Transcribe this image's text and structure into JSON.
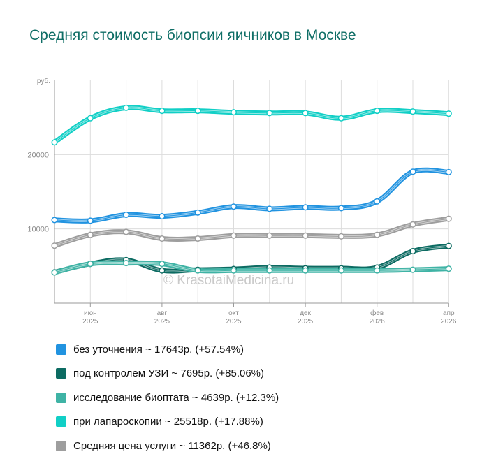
{
  "title": "Средняя стоимость биопсии яичников в Москве",
  "watermark": "© KrasotaiMedicina.ru",
  "colors": {
    "grid": "#dcdcdc",
    "axis": "#9a9a9a",
    "tick_text": "#8a8a8a"
  },
  "legend": [
    {
      "label": "без уточнения ~ 17643р. (+57.54%)",
      "color": "#2193e0"
    },
    {
      "label": "под контролем УЗИ ~ 7695р. (+85.06%)",
      "color": "#0c6b62"
    },
    {
      "label": "исследование биоптата ~ 4639р. (+12.3%)",
      "color": "#3fb3a5"
    },
    {
      "label": "при лапароскопии ~ 25518р. (+17.88%)",
      "color": "#11cfc6"
    },
    {
      "label": "Средняя цена услуги ~ 11362р. (+46.8%)",
      "color": "#9e9e9e"
    }
  ],
  "chart_data": {
    "type": "line",
    "title": "Средняя стоимость биопсии яичников в Москве",
    "ylabel": "руб.",
    "xlabel": "",
    "ylim": [
      0,
      30000
    ],
    "yticks": [
      10000,
      20000
    ],
    "x_tick_labels": [
      {
        "index": 1,
        "month": "июн",
        "year": "2025"
      },
      {
        "index": 3,
        "month": "авг",
        "year": "2025"
      },
      {
        "index": 5,
        "month": "окт",
        "year": "2025"
      },
      {
        "index": 7,
        "month": "дек",
        "year": "2025"
      },
      {
        "index": 9,
        "month": "фев",
        "year": "2026"
      },
      {
        "index": 11,
        "month": "апр",
        "year": "2026"
      }
    ],
    "categories": [
      "2025-05",
      "2025-06",
      "2025-07",
      "2025-08",
      "2025-09",
      "2025-10",
      "2025-11",
      "2025-12",
      "2026-01",
      "2026-02",
      "2026-03",
      "2026-04"
    ],
    "series": [
      {
        "name": "без уточнения",
        "color": "#2193e0",
        "values": [
          11200,
          11100,
          11900,
          11700,
          12200,
          13000,
          12700,
          12900,
          12800,
          13700,
          17700,
          17643
        ]
      },
      {
        "name": "под контролем УЗИ",
        "color": "#0c6b62",
        "values": [
          4158,
          5300,
          5800,
          4400,
          4500,
          4600,
          4800,
          4700,
          4700,
          4800,
          7000,
          7695
        ]
      },
      {
        "name": "исследование биоптата",
        "color": "#3fb3a5",
        "values": [
          4131,
          5300,
          5400,
          5300,
          4400,
          4400,
          4400,
          4400,
          4400,
          4400,
          4500,
          4639
        ]
      },
      {
        "name": "при лапароскопии",
        "color": "#11cfc6",
        "values": [
          21650,
          24900,
          26300,
          25900,
          25900,
          25700,
          25600,
          25600,
          24900,
          25900,
          25800,
          25518
        ]
      },
      {
        "name": "Средняя цена услуги",
        "color": "#9e9e9e",
        "values": [
          7740,
          9200,
          9600,
          8700,
          8700,
          9100,
          9100,
          9100,
          9000,
          9200,
          10600,
          11362
        ]
      }
    ]
  }
}
